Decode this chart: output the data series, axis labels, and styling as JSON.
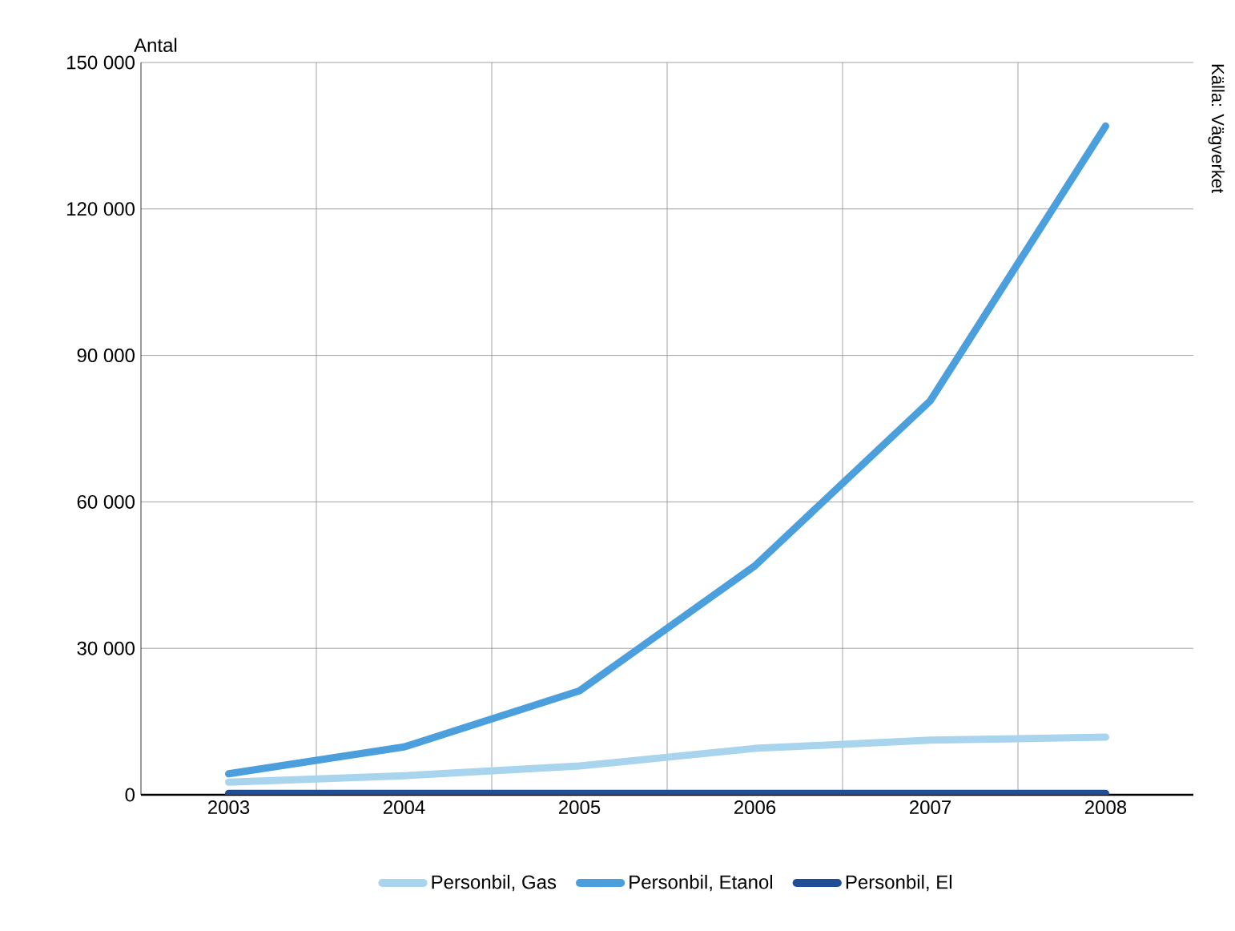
{
  "chart_data": {
    "type": "line",
    "ylabel": "Antal",
    "categories": [
      "2003",
      "2004",
      "2005",
      "2006",
      "2007",
      "2008"
    ],
    "series": [
      {
        "name": "Personbil, Gas",
        "color": "#a8d4ee",
        "values": [
          2600,
          3900,
          5900,
          9500,
          11200,
          11800
        ]
      },
      {
        "name": "Personbil, Etanol",
        "color": "#4a9fdc",
        "values": [
          4300,
          9800,
          21300,
          46900,
          80700,
          137000
        ]
      },
      {
        "name": "Personbil, El",
        "color": "#1f4e96",
        "values": [
          300,
          300,
          300,
          300,
          300,
          300
        ]
      }
    ],
    "ylim": [
      0,
      150000
    ],
    "yticks": [
      {
        "value": 0,
        "label": "0"
      },
      {
        "value": 30000,
        "label": "30 000"
      },
      {
        "value": 60000,
        "label": "60 000"
      },
      {
        "value": 90000,
        "label": "90 000"
      },
      {
        "value": 120000,
        "label": "120 000"
      },
      {
        "value": 150000,
        "label": "150 000"
      }
    ],
    "grid": true,
    "legend": "bottom",
    "marker": "none",
    "line_style": "solid",
    "annotations": [
      "Källa: Vägverket"
    ]
  }
}
